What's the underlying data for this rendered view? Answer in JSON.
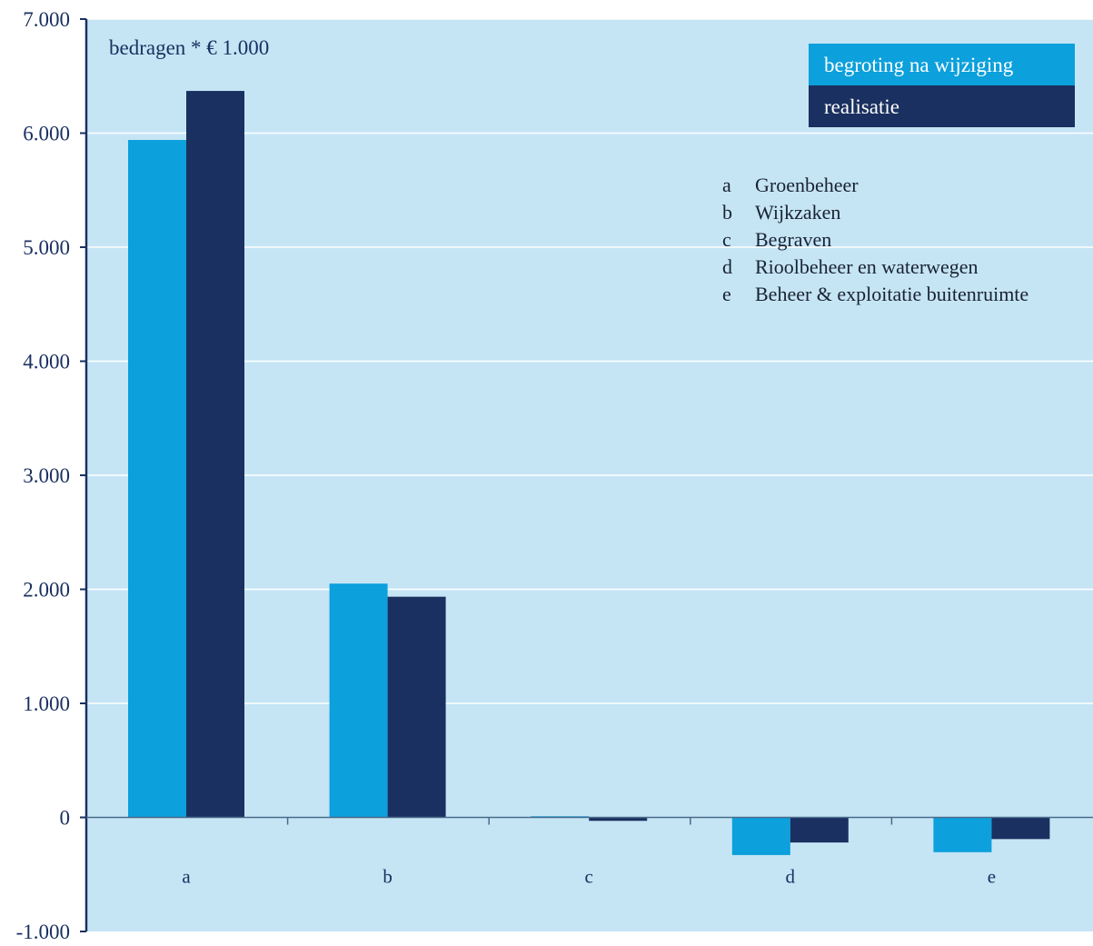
{
  "chart_data": {
    "type": "bar",
    "unit_label": "bedragen * € 1.000",
    "categories": [
      "a",
      "b",
      "c",
      "d",
      "e"
    ],
    "series": [
      {
        "name": "begroting na wijziging",
        "values": [
          5940,
          2050,
          10,
          -330,
          -305
        ],
        "color": "#0ca0dc"
      },
      {
        "name": "realisatie",
        "values": [
          6370,
          1935,
          -30,
          -220,
          -190
        ],
        "color": "#1a3060"
      }
    ],
    "ylim": [
      -1000,
      7000
    ],
    "yticks": [
      -1000,
      0,
      1000,
      2000,
      3000,
      4000,
      5000,
      6000,
      7000
    ],
    "ytick_labels": [
      "-1.000",
      "0",
      "1.000",
      "2.000",
      "3.000",
      "4.000",
      "5.000",
      "6.000",
      "7.000"
    ],
    "legend_position": "top-right",
    "grid": true,
    "category_key": [
      {
        "letter": "a",
        "text": "Groenbeheer"
      },
      {
        "letter": "b",
        "text": "Wijkzaken"
      },
      {
        "letter": "c",
        "text": "Begraven"
      },
      {
        "letter": "d",
        "text": "Rioolbeheer en waterwegen"
      },
      {
        "letter": "e",
        "text": "Beheer & exploitatie buitenruimte"
      }
    ],
    "colors": {
      "background": "#c5e5f5",
      "grid": "#ffffff",
      "axis": "#1a3060"
    }
  }
}
